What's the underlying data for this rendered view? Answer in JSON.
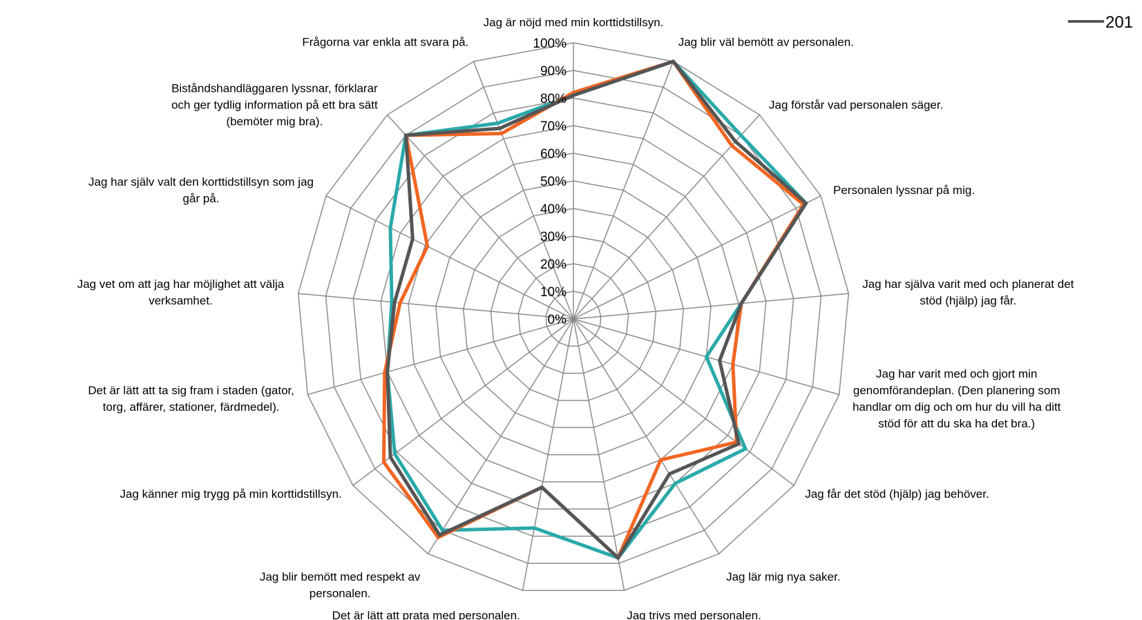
{
  "chart_data": {
    "type": "radar",
    "title": "",
    "rlim": [
      0,
      100
    ],
    "ticks": [
      "0%",
      "10%",
      "20%",
      "30%",
      "40%",
      "50%",
      "60%",
      "70%",
      "80%",
      "90%",
      "100%"
    ],
    "categories": [
      "Jag är nöjd med min korttidstillsyn.",
      "Jag blir väl bemött av personalen.",
      "Jag förstår vad personalen säger.",
      "Personalen lyssnar på mig.",
      "Jag har själva varit med och planerat det stöd (hjälp) jag får.",
      "Jag har varit med och gjort min genomförandeplan. (Den planering som handlar om dig och om hur du vill ha ditt stöd för att du ska ha det bra.)",
      "Jag får det stöd (hjälp) jag behöver.",
      "Jag lär mig nya saker.",
      "Jag trivs med personalen.",
      "Det är lätt att prata med personalen.",
      "Jag blir bemött med respekt av personalen.",
      "Jag känner mig trygg på min korttidstillsyn.",
      "Det är lätt att ta sig fram i staden (gator, torg, affärer, stationer, färdmedel).",
      "Jag vet om att jag har möjlighet att välja verksamhet.",
      "Jag har själv valt den korttidstillsyn som jag går på.",
      "Biståndshandläggaren lyssnar, förklarar och ger tydlig information på ett bra sätt (bemöter mig bra).",
      "Frågorna var enkla att svara på."
    ],
    "axis_label_lines": [
      [
        "Jag är nöjd med min korttidstillsyn."
      ],
      [
        "Jag blir väl bemött av personalen."
      ],
      [
        "Jag förstår vad personalen säger."
      ],
      [
        "Personalen lyssnar på mig."
      ],
      [
        "Jag har själva varit med och planerat det",
        "stöd (hjälp) jag får."
      ],
      [
        "Jag har varit med och gjort min",
        "genomförandeplan. (Den planering som",
        "handlar om dig och om hur du vill ha ditt",
        "stöd för att du ska ha det bra.)"
      ],
      [
        "Jag får det stöd (hjälp) jag behöver."
      ],
      [
        "Jag lär mig nya saker."
      ],
      [
        "Jag trivs med personalen."
      ],
      [
        "Det är lätt att prata med personalen."
      ],
      [
        "Jag blir bemött med respekt av",
        "personalen."
      ],
      [
        "Jag känner mig trygg på min korttidstillsyn."
      ],
      [
        "Det är lätt att ta sig fram i staden (gator,",
        "torg, affärer, stationer, färdmedel)."
      ],
      [
        "Jag vet om att jag har möjlighet att välja",
        "verksamhet."
      ],
      [
        "Jag har själv valt den korttidstillsyn som jag",
        "går på."
      ],
      [
        "Biståndshandläggaren lyssnar, förklarar",
        "och ger tydlig information på ett bra sätt",
        "(bemöter mig bra)."
      ],
      [
        "Frågorna var enkla att svara på."
      ]
    ],
    "series": [
      {
        "name": "",
        "color": "#2aa9a9",
        "values": [
          81,
          100,
          90,
          94,
          61,
          50,
          78,
          70,
          88,
          77,
          90,
          81,
          70,
          66,
          74,
          90,
          76
        ]
      },
      {
        "name": "",
        "color": "#f26522",
        "values": [
          82,
          100,
          85,
          93,
          61,
          60,
          74,
          60,
          88,
          62,
          93,
          86,
          71,
          63,
          59,
          90,
          72
        ]
      },
      {
        "name": "",
        "color": "#555555",
        "values": [
          81,
          100,
          87,
          94,
          61,
          55,
          75,
          66,
          88,
          62,
          92,
          83,
          70,
          65,
          65,
          90,
          74
        ]
      }
    ],
    "legend": {
      "position": "top-right",
      "visible_text": "201"
    },
    "grid": true
  }
}
